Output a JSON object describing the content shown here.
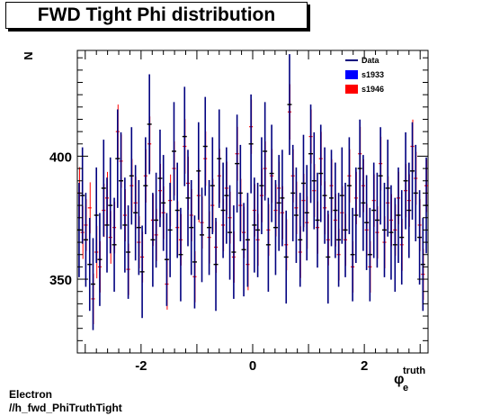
{
  "chart_data": {
    "type": "scatter",
    "title": "FWD Tight Phi distribution",
    "ylabel": "N",
    "xlabel": {
      "base": "φ",
      "sub": "e",
      "sup": "truth"
    },
    "xlim": [
      -3.1416,
      3.1416
    ],
    "ylim": [
      320,
      443
    ],
    "xticks": [
      -2,
      0,
      2
    ],
    "xticklabels": [
      "-2",
      "0",
      "2"
    ],
    "yticks": [
      350,
      400
    ],
    "yticklabels": [
      "350",
      "400"
    ],
    "legend": {
      "position": "top-right",
      "entries": [
        {
          "label": "Data",
          "color": "#00007f",
          "marker": "line"
        },
        {
          "label": "s1933",
          "color": "#0000ff",
          "marker": "box"
        },
        {
          "label": "s1946",
          "color": "#ff0000",
          "marker": "box"
        }
      ]
    },
    "series": [
      {
        "name": "s1946",
        "color": "#ff0000",
        "values": [
          385,
          369,
          372,
          379,
          342,
          361,
          355,
          378,
          383,
          367,
          371,
          410,
          398,
          376,
          354,
          388,
          381,
          365,
          359,
          392,
          405,
          374,
          368,
          386,
          377,
          348,
          382,
          395,
          371,
          366,
          404,
          389,
          376,
          351,
          384,
          373,
          399,
          367,
          380,
          363,
          392,
          372,
          387,
          375,
          359,
          401,
          380,
          369,
          356,
          412,
          378,
          366,
          384,
          395,
          370,
          392,
          378,
          387,
          377,
          364,
          418,
          392,
          379,
          361,
          382,
          373,
          408,
          386,
          371,
          399,
          379,
          366,
          388,
          374,
          360,
          377,
          366,
          392,
          355,
          383,
          401,
          388,
          370,
          355,
          382,
          369,
          397,
          365,
          381,
          374,
          370,
          383,
          364,
          386,
          382,
          404,
          391,
          372,
          352,
          388
        ]
      },
      {
        "name": "Data",
        "color": "#00007f",
        "x": [
          -3.11,
          -3.05,
          -2.99,
          -2.92,
          -2.86,
          -2.8,
          -2.74,
          -2.67,
          -2.61,
          -2.55,
          -2.48,
          -2.42,
          -2.36,
          -2.29,
          -2.23,
          -2.17,
          -2.1,
          -2.04,
          -1.98,
          -1.92,
          -1.85,
          -1.79,
          -1.73,
          -1.66,
          -1.6,
          -1.54,
          -1.48,
          -1.41,
          -1.35,
          -1.29,
          -1.22,
          -1.16,
          -1.1,
          -1.04,
          -0.97,
          -0.91,
          -0.85,
          -0.78,
          -0.72,
          -0.66,
          -0.6,
          -0.53,
          -0.47,
          -0.41,
          -0.34,
          -0.28,
          -0.22,
          -0.16,
          -0.09,
          -0.03,
          0.03,
          0.09,
          0.16,
          0.22,
          0.28,
          0.34,
          0.41,
          0.47,
          0.53,
          0.6,
          0.66,
          0.72,
          0.78,
          0.85,
          0.91,
          0.97,
          1.04,
          1.1,
          1.16,
          1.22,
          1.29,
          1.35,
          1.41,
          1.48,
          1.54,
          1.6,
          1.66,
          1.73,
          1.79,
          1.85,
          1.92,
          1.98,
          2.04,
          2.1,
          2.17,
          2.23,
          2.29,
          2.36,
          2.42,
          2.48,
          2.55,
          2.61,
          2.67,
          2.74,
          2.8,
          2.86,
          2.92,
          2.99,
          3.05,
          3.11
        ],
        "values": [
          370,
          384,
          366,
          356,
          348,
          376,
          358,
          387,
          372,
          380,
          364,
          399,
          390,
          372,
          361,
          392,
          377,
          371,
          353,
          388,
          413,
          366,
          374,
          391,
          381,
          358,
          370,
          402,
          378,
          360,
          408,
          383,
          371,
          357,
          394,
          368,
          404,
          371,
          388,
          356,
          399,
          378,
          384,
          369,
          361,
          397,
          385,
          362,
          366,
          405,
          372,
          370,
          388,
          402,
          364,
          393,
          371,
          381,
          383,
          359,
          421,
          385,
          376,
          366,
          389,
          377,
          401,
          390,
          374,
          393,
          384,
          359,
          383,
          378,
          366,
          384,
          370,
          388,
          360,
          376,
          395,
          381,
          373,
          360,
          378,
          374,
          392,
          370,
          387,
          369,
          364,
          376,
          367,
          390,
          378,
          394,
          385,
          367,
          356,
          380
        ],
        "errors": [
          19.2,
          19.6,
          19.1,
          18.9,
          18.7,
          19.4,
          18.9,
          19.7,
          19.3,
          19.5,
          19.1,
          20.0,
          19.7,
          19.3,
          19.0,
          19.8,
          19.4,
          19.3,
          18.8,
          19.7,
          20.3,
          19.1,
          19.3,
          19.8,
          19.5,
          18.9,
          19.2,
          20.0,
          19.4,
          19.0,
          20.2,
          19.6,
          19.3,
          18.9,
          19.8,
          19.2,
          20.1,
          19.3,
          19.7,
          18.9,
          20.0,
          19.4,
          19.6,
          19.2,
          19.0,
          19.9,
          19.6,
          19.0,
          19.1,
          20.1,
          19.3,
          19.2,
          19.7,
          20.0,
          19.1,
          19.8,
          19.3,
          19.5,
          19.6,
          18.9,
          20.5,
          19.6,
          19.4,
          19.1,
          19.7,
          19.4,
          20.0,
          19.7,
          19.3,
          19.8,
          19.6,
          18.9,
          19.6,
          19.4,
          19.1,
          19.6,
          19.2,
          19.7,
          19.0,
          19.4,
          19.9,
          19.5,
          19.3,
          19.0,
          19.4,
          19.3,
          19.8,
          19.2,
          19.7,
          19.2,
          19.1,
          19.4,
          19.2,
          19.7,
          19.4,
          19.8,
          19.6,
          19.2,
          18.9,
          19.5
        ]
      }
    ]
  },
  "footer": {
    "line1": "Electron",
    "line2": "//h_fwd_PhiTruthTight"
  }
}
